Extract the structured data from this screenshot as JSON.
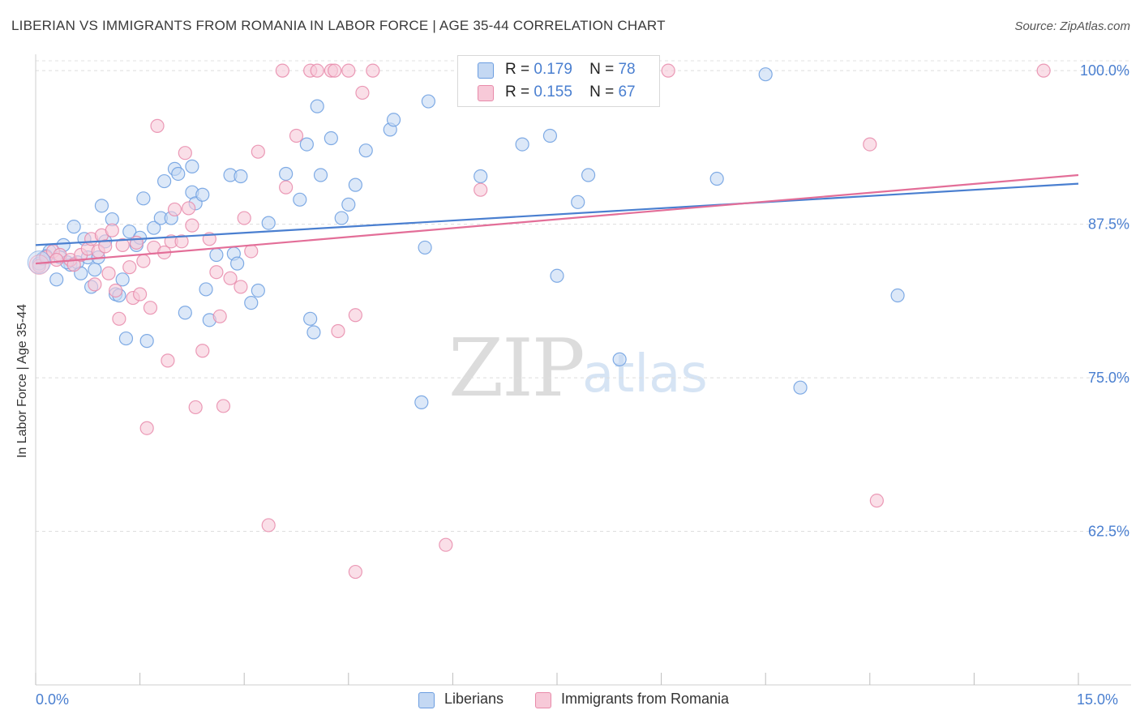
{
  "title": "LIBERIAN VS IMMIGRANTS FROM ROMANIA IN LABOR FORCE | AGE 35-44 CORRELATION CHART",
  "source": "Source: ZipAtlas.com",
  "watermark": {
    "zip": "ZIP",
    "atlas": "atlas"
  },
  "legend": {
    "r_label": "R =",
    "n_label": "N =",
    "entries": [
      {
        "name": "Liberians",
        "r": "0.179",
        "n": "78",
        "color": "#6b9de0",
        "fill": "#c4d8f3"
      },
      {
        "name": "Immigrants from Romania",
        "r": "0.155",
        "n": "67",
        "color": "#e88aaa",
        "fill": "#f7c9d8"
      }
    ]
  },
  "chart_data": {
    "type": "scatter",
    "title": "LIBERIAN VS IMMIGRANTS FROM ROMANIA IN LABOR FORCE | AGE 35-44 CORRELATION CHART",
    "xlabel": "",
    "ylabel": "In Labor Force | Age 35-44",
    "xlim": [
      0,
      15
    ],
    "ylim": [
      50,
      101
    ],
    "x_tick_labels": [
      "0.0%",
      "15.0%"
    ],
    "y_ticks": [
      62.5,
      75.0,
      87.5,
      100.0
    ],
    "y_tick_labels": [
      "62.5%",
      "75.0%",
      "87.5%",
      "100.0%"
    ],
    "grid": true,
    "series": [
      {
        "name": "Liberians",
        "color": "#4a7fd0",
        "trend": {
          "x": [
            0,
            15
          ],
          "y": [
            85.8,
            90.8
          ]
        },
        "points": [
          [
            0.05,
            84.3
          ],
          [
            0.1,
            84.7
          ],
          [
            0.2,
            85.3
          ],
          [
            0.3,
            83.0
          ],
          [
            0.35,
            84.8
          ],
          [
            0.4,
            85.8
          ],
          [
            0.5,
            84.2
          ],
          [
            0.55,
            87.3
          ],
          [
            0.6,
            84.4
          ],
          [
            0.65,
            83.5
          ],
          [
            0.75,
            84.8
          ],
          [
            0.8,
            82.4
          ],
          [
            0.85,
            83.8
          ],
          [
            0.9,
            84.8
          ],
          [
            0.95,
            89.0
          ],
          [
            1.0,
            86.1
          ],
          [
            1.1,
            87.9
          ],
          [
            1.15,
            81.8
          ],
          [
            1.2,
            81.7
          ],
          [
            1.25,
            83.0
          ],
          [
            1.3,
            78.2
          ],
          [
            1.35,
            86.9
          ],
          [
            1.45,
            85.8
          ],
          [
            1.5,
            86.4
          ],
          [
            1.55,
            89.6
          ],
          [
            1.6,
            78.0
          ],
          [
            1.7,
            87.2
          ],
          [
            1.8,
            88.0
          ],
          [
            1.85,
            91.0
          ],
          [
            1.95,
            88.0
          ],
          [
            2.0,
            92.0
          ],
          [
            2.05,
            91.6
          ],
          [
            2.15,
            80.3
          ],
          [
            2.25,
            92.2
          ],
          [
            2.25,
            90.1
          ],
          [
            2.3,
            89.2
          ],
          [
            2.4,
            89.9
          ],
          [
            2.45,
            82.2
          ],
          [
            2.5,
            79.7
          ],
          [
            2.6,
            85.0
          ],
          [
            2.8,
            91.5
          ],
          [
            2.85,
            85.1
          ],
          [
            2.9,
            84.3
          ],
          [
            2.95,
            91.4
          ],
          [
            3.1,
            81.1
          ],
          [
            3.2,
            82.1
          ],
          [
            3.35,
            87.6
          ],
          [
            3.6,
            91.6
          ],
          [
            3.8,
            89.5
          ],
          [
            3.9,
            94.0
          ],
          [
            3.95,
            79.8
          ],
          [
            4.0,
            78.7
          ],
          [
            4.05,
            97.1
          ],
          [
            4.1,
            91.5
          ],
          [
            4.25,
            94.5
          ],
          [
            4.4,
            88.0
          ],
          [
            4.5,
            89.1
          ],
          [
            4.6,
            90.7
          ],
          [
            4.75,
            93.5
          ],
          [
            5.1,
            95.2
          ],
          [
            5.15,
            96.0
          ],
          [
            5.55,
            73.0
          ],
          [
            5.6,
            85.6
          ],
          [
            5.65,
            97.5
          ],
          [
            6.4,
            91.4
          ],
          [
            7.0,
            94.0
          ],
          [
            7.4,
            94.7
          ],
          [
            7.5,
            83.3
          ],
          [
            7.8,
            89.3
          ],
          [
            7.95,
            91.5
          ],
          [
            8.4,
            76.5
          ],
          [
            9.8,
            91.2
          ],
          [
            10.5,
            99.7
          ],
          [
            11.0,
            74.2
          ],
          [
            12.4,
            81.7
          ],
          [
            0.15,
            84.9
          ],
          [
            0.45,
            84.4
          ],
          [
            0.7,
            86.3
          ]
        ]
      },
      {
        "name": "Immigrants from Romania",
        "color": "#e36e98",
        "trend": {
          "x": [
            0,
            15
          ],
          "y": [
            84.3,
            91.5
          ]
        },
        "points": [
          [
            0.05,
            84.1
          ],
          [
            0.15,
            84.8
          ],
          [
            0.25,
            85.3
          ],
          [
            0.35,
            85.0
          ],
          [
            0.5,
            84.6
          ],
          [
            0.55,
            84.2
          ],
          [
            0.65,
            85.0
          ],
          [
            0.75,
            85.5
          ],
          [
            0.8,
            86.3
          ],
          [
            0.85,
            82.6
          ],
          [
            0.9,
            85.3
          ],
          [
            0.95,
            86.6
          ],
          [
            1.0,
            85.7
          ],
          [
            1.05,
            83.5
          ],
          [
            1.1,
            87.0
          ],
          [
            1.15,
            82.1
          ],
          [
            1.2,
            79.8
          ],
          [
            1.25,
            85.8
          ],
          [
            1.35,
            84.0
          ],
          [
            1.4,
            81.5
          ],
          [
            1.45,
            86.0
          ],
          [
            1.5,
            81.8
          ],
          [
            1.55,
            84.5
          ],
          [
            1.6,
            70.9
          ],
          [
            1.65,
            80.7
          ],
          [
            1.7,
            85.6
          ],
          [
            1.75,
            95.5
          ],
          [
            1.85,
            85.2
          ],
          [
            1.9,
            76.4
          ],
          [
            1.95,
            86.1
          ],
          [
            2.0,
            88.7
          ],
          [
            2.1,
            86.1
          ],
          [
            2.15,
            93.3
          ],
          [
            2.2,
            88.8
          ],
          [
            2.25,
            87.4
          ],
          [
            2.3,
            72.6
          ],
          [
            2.4,
            77.2
          ],
          [
            2.5,
            86.3
          ],
          [
            2.6,
            83.6
          ],
          [
            2.65,
            80.0
          ],
          [
            2.7,
            72.7
          ],
          [
            2.8,
            83.1
          ],
          [
            2.95,
            82.4
          ],
          [
            3.0,
            88.0
          ],
          [
            3.1,
            85.3
          ],
          [
            3.2,
            93.4
          ],
          [
            3.35,
            63.0
          ],
          [
            3.55,
            100.0
          ],
          [
            3.6,
            90.5
          ],
          [
            3.75,
            94.7
          ],
          [
            3.95,
            100.0
          ],
          [
            4.05,
            100.0
          ],
          [
            4.25,
            100.0
          ],
          [
            4.3,
            100.0
          ],
          [
            4.35,
            78.8
          ],
          [
            4.5,
            100.0
          ],
          [
            4.6,
            80.1
          ],
          [
            4.6,
            59.2
          ],
          [
            4.7,
            98.2
          ],
          [
            4.85,
            100.0
          ],
          [
            5.9,
            61.4
          ],
          [
            6.4,
            90.3
          ],
          [
            9.1,
            100.0
          ],
          [
            12.0,
            94.0
          ],
          [
            12.1,
            65.0
          ],
          [
            14.5,
            100.0
          ],
          [
            0.3,
            84.6
          ]
        ]
      }
    ]
  }
}
